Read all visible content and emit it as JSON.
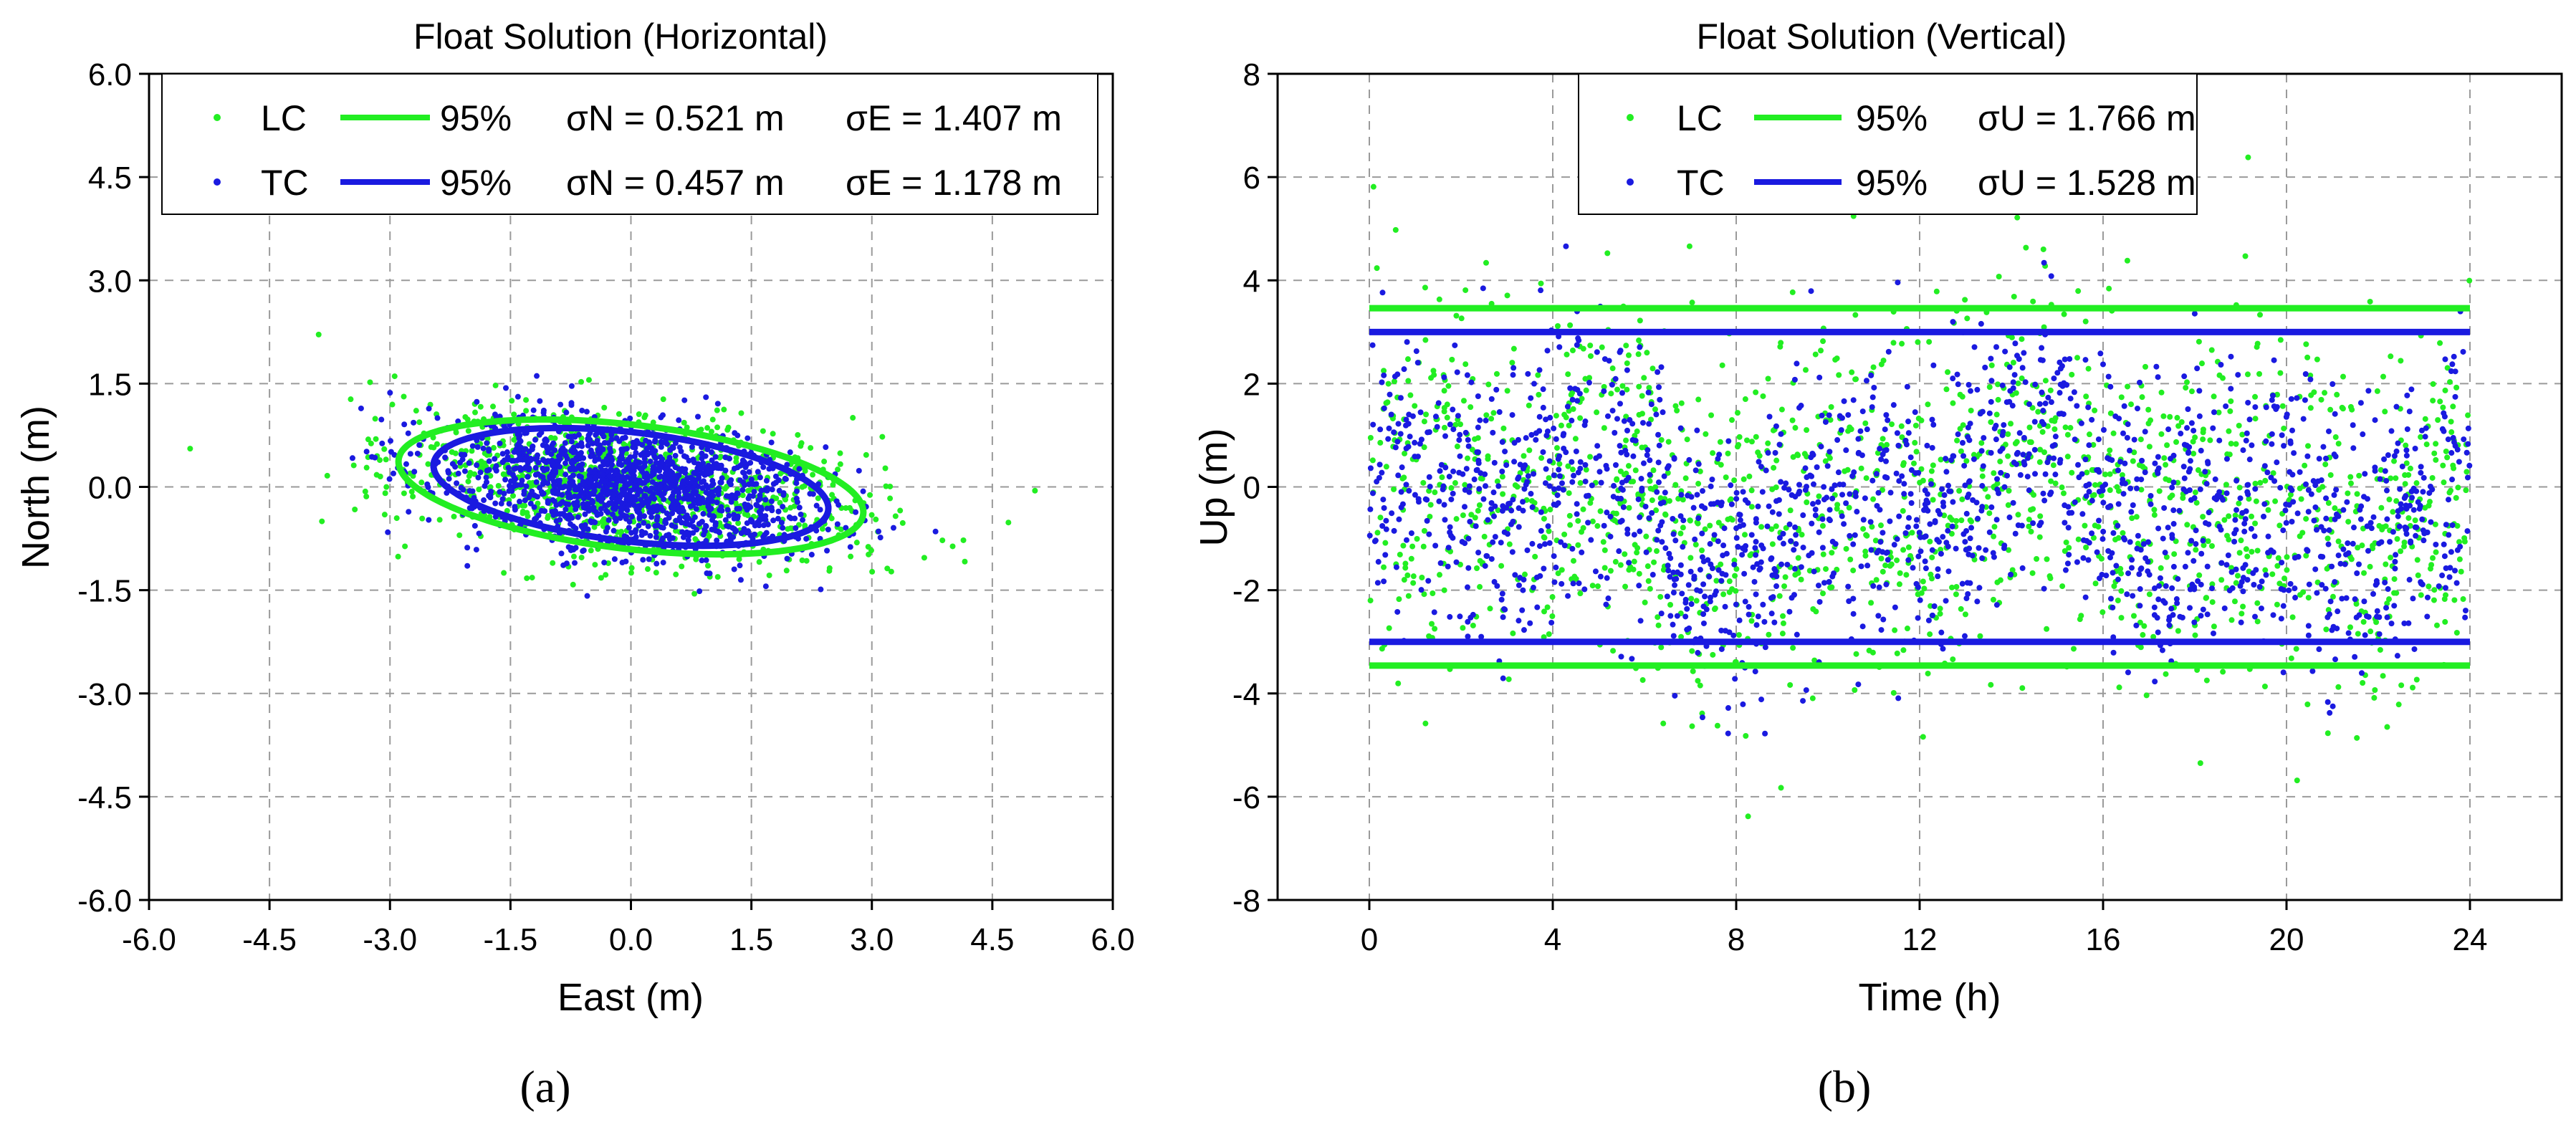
{
  "colors": {
    "lc": "#22ee22",
    "tc": "#1a1ae0",
    "grid": "#9a9a9a",
    "axis": "#000000"
  },
  "chart_data": [
    {
      "type": "scatter",
      "panel_label": "(a)",
      "title": "Float Solution (Horizontal)",
      "xlabel": "East (m)",
      "ylabel": "North (m)",
      "xlim": [
        -6.0,
        6.0
      ],
      "ylim": [
        -6.0,
        6.0
      ],
      "xticks": [
        -6.0,
        -4.5,
        -3.0,
        -1.5,
        0.0,
        1.5,
        3.0,
        4.5,
        6.0
      ],
      "yticks": [
        -6.0,
        -4.5,
        -3.0,
        -1.5,
        0.0,
        1.5,
        3.0,
        4.5,
        6.0
      ],
      "xtick_labels": [
        "-6.0",
        "-4.5",
        "-3.0",
        "-1.5",
        "0.0",
        "1.5",
        "3.0",
        "4.5",
        "6.0"
      ],
      "ytick_labels": [
        "-6.0",
        "-4.5",
        "-3.0",
        "-1.5",
        "0.0",
        "1.5",
        "3.0",
        "4.5",
        "6.0"
      ],
      "grid": true,
      "legend_position": "top",
      "series": [
        {
          "name": "LC",
          "line_label": "95%",
          "sigma_text_1": "σN = 0.521 m",
          "sigma_text_2": "σE = 1.407 m",
          "sigma_N": 0.521,
          "sigma_E": 1.407,
          "ellipse": {
            "a": 2.92,
            "b": 0.9,
            "angle_deg": -8
          }
        },
        {
          "name": "TC",
          "line_label": "95%",
          "sigma_text_1": "σN = 0.457 m",
          "sigma_text_2": "σE = 1.178 m",
          "sigma_N": 0.457,
          "sigma_E": 1.178,
          "ellipse": {
            "a": 2.48,
            "b": 0.79,
            "angle_deg": -8
          }
        }
      ]
    },
    {
      "type": "scatter",
      "panel_label": "(b)",
      "title": "Float Solution (Vertical)",
      "xlabel": "Time (h)",
      "ylabel": "Up (m)",
      "xlim": [
        -2,
        26
      ],
      "ylim": [
        -8,
        8
      ],
      "xticks": [
        0,
        4,
        8,
        12,
        16,
        20,
        24
      ],
      "yticks": [
        -8,
        -6,
        -4,
        -2,
        0,
        2,
        4,
        6,
        8
      ],
      "xtick_labels": [
        "0",
        "4",
        "8",
        "12",
        "16",
        "20",
        "24"
      ],
      "ytick_labels": [
        "-8",
        "-6",
        "-4",
        "-2",
        "0",
        "2",
        "4",
        "6",
        "8"
      ],
      "grid": true,
      "legend_position": "top",
      "series": [
        {
          "name": "LC",
          "line_label": "95%",
          "sigma_text": "σU = 1.766 m",
          "sigma_U": 1.766,
          "bound_95": 3.46
        },
        {
          "name": "TC",
          "line_label": "95%",
          "sigma_text": "σU = 1.528 m",
          "sigma_U": 1.528,
          "bound_95": 3.0
        }
      ]
    }
  ]
}
